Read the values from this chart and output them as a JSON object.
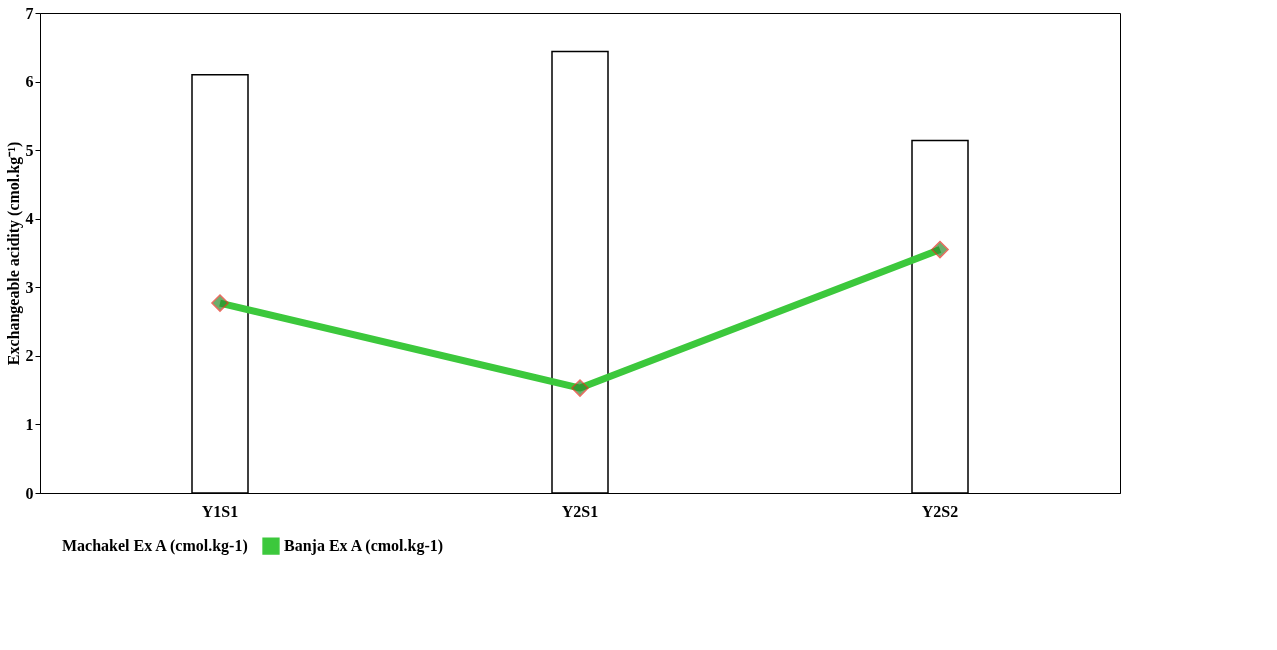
{
  "chart_data": {
    "type": "bar",
    "ylabel": "Exchangeable acidity (cmol.kg⁻¹)",
    "categories": [
      "Y1S1",
      "Y2S1",
      "Y2S2"
    ],
    "series": [
      {
        "name": "Machakel Ex A (cmol.kg-1)",
        "color": "#ffffff",
        "values": [
          6.1,
          6.44,
          5.14
        ]
      },
      {
        "name": "Banja Ex A (cmol.kg-1)",
        "type": "line",
        "color": "#3cc83c",
        "marker": "diamond",
        "values": [
          2.77,
          1.53,
          3.55
        ]
      }
    ],
    "ylim": [
      0,
      7
    ],
    "yticks": [
      0,
      1,
      2,
      3,
      4,
      5,
      6,
      7
    ],
    "grid": false,
    "legend": "bottom"
  }
}
